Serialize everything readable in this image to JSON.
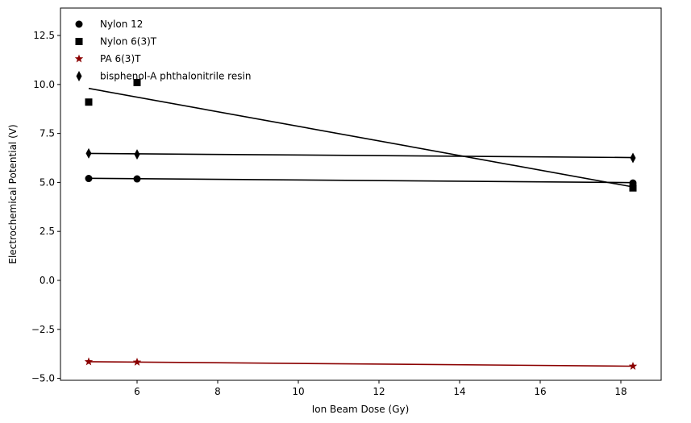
{
  "chart_data": {
    "type": "scatter",
    "title": "",
    "xlabel": "Ion Beam Dose (Gy)",
    "ylabel": "Electrochemical Potential (V)",
    "xlim": [
      4.1,
      19.0
    ],
    "ylim": [
      -5.1,
      13.9
    ],
    "xticks": [
      6,
      8,
      10,
      12,
      14,
      16,
      18
    ],
    "yticks": [
      -5.0,
      -2.5,
      0.0,
      2.5,
      5.0,
      7.5,
      10.0,
      12.5
    ],
    "xtick_labels": [
      "6",
      "8",
      "10",
      "12",
      "14",
      "16",
      "18"
    ],
    "ytick_labels": [
      "−5.0",
      "−2.5",
      "0.0",
      "2.5",
      "5.0",
      "7.5",
      "10.0",
      "12.5"
    ],
    "grid": false,
    "legend_position": "top-left",
    "series": [
      {
        "name": "Nylon 12",
        "marker": "circle",
        "color": "#000000",
        "x": [
          4.8,
          6.0,
          18.3
        ],
        "y": [
          5.2,
          5.18,
          4.97
        ],
        "trend": {
          "x": [
            4.8,
            18.3
          ],
          "y": [
            5.21,
            4.99
          ]
        }
      },
      {
        "name": "Nylon 6(3)T",
        "marker": "square",
        "color": "#000000",
        "x": [
          4.8,
          6.0,
          18.3
        ],
        "y": [
          9.1,
          10.1,
          4.72
        ],
        "trend": {
          "x": [
            4.8,
            18.3
          ],
          "y": [
            9.8,
            4.77
          ]
        }
      },
      {
        "name": "PA 6(3)T",
        "marker": "star",
        "color": "#8b0000",
        "x": [
          4.8,
          6.0,
          18.3
        ],
        "y": [
          -4.15,
          -4.17,
          -4.38
        ],
        "trend": {
          "x": [
            4.8,
            18.3
          ],
          "y": [
            -4.15,
            -4.38
          ]
        }
      },
      {
        "name": "bisphenol-A phthalonitrile resin",
        "marker": "diamond",
        "color": "#000000",
        "x": [
          4.8,
          6.0,
          18.3
        ],
        "y": [
          6.48,
          6.43,
          6.25
        ],
        "trend": {
          "x": [
            4.8,
            18.3
          ],
          "y": [
            6.48,
            6.27
          ]
        }
      }
    ]
  }
}
